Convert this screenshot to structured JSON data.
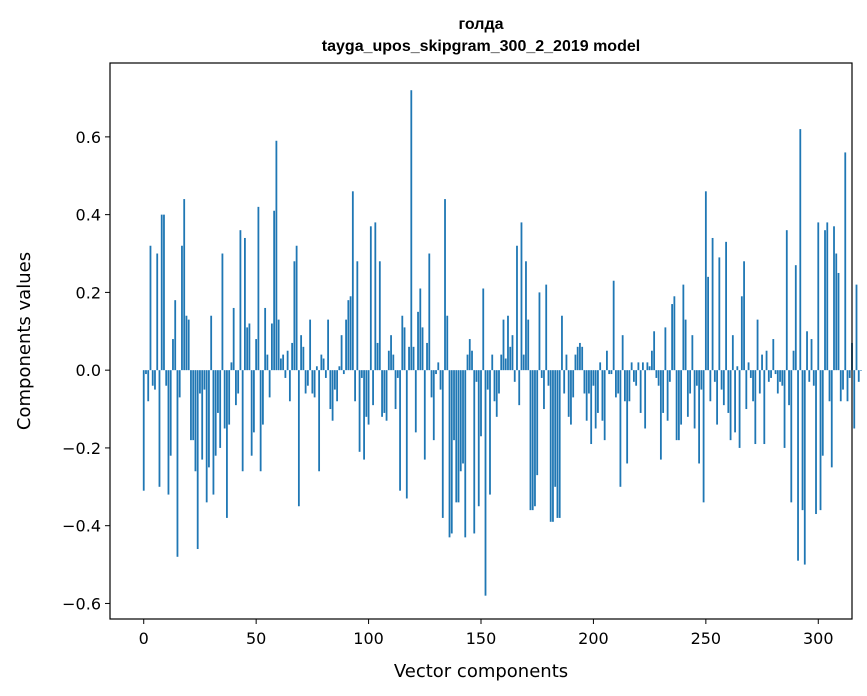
{
  "chart_data": {
    "type": "bar",
    "title": "голда",
    "subtitle": "tayga_upos_skipgram_300_2_2019 model",
    "xlabel": "Vector components",
    "ylabel": "Components values",
    "xlim": [
      -15,
      315
    ],
    "ylim": [
      -0.64,
      0.79
    ],
    "x_ticks": [
      0,
      50,
      100,
      150,
      200,
      250,
      300
    ],
    "y_ticks": [
      -0.6,
      -0.4,
      -0.2,
      0.0,
      0.2,
      0.4,
      0.6
    ],
    "x_tick_labels": [
      "0",
      "50",
      "100",
      "150",
      "200",
      "250",
      "300"
    ],
    "y_tick_labels": [
      "−0.6",
      "−0.4",
      "−0.2",
      "0.0",
      "0.2",
      "0.4",
      "0.6"
    ],
    "bar_color": "#1f77b4",
    "values": [
      -0.31,
      -0.01,
      -0.08,
      0.32,
      -0.04,
      -0.05,
      0.3,
      -0.3,
      0.4,
      0.4,
      -0.04,
      -0.32,
      -0.22,
      0.08,
      0.18,
      -0.48,
      -0.07,
      0.32,
      0.44,
      0.14,
      0.13,
      -0.18,
      -0.18,
      -0.26,
      -0.46,
      -0.06,
      -0.23,
      -0.05,
      -0.34,
      -0.25,
      0.14,
      -0.32,
      -0.22,
      -0.11,
      -0.2,
      0.3,
      -0.15,
      -0.38,
      -0.14,
      0.02,
      0.16,
      -0.09,
      -0.06,
      0.36,
      -0.26,
      0.34,
      0.11,
      0.12,
      -0.22,
      -0.16,
      0.08,
      0.42,
      -0.26,
      -0.14,
      0.16,
      0.04,
      -0.07,
      0.12,
      0.41,
      0.59,
      0.13,
      0.03,
      0.04,
      -0.02,
      0.05,
      -0.08,
      0.07,
      0.28,
      0.32,
      -0.35,
      0.09,
      0.06,
      -0.06,
      -0.04,
      0.13,
      -0.06,
      -0.07,
      0.01,
      -0.26,
      0.04,
      0.03,
      -0.02,
      0.13,
      -0.1,
      -0.13,
      -0.05,
      -0.08,
      0.01,
      0.09,
      -0.01,
      0.13,
      0.18,
      0.19,
      0.46,
      -0.08,
      0.28,
      -0.21,
      -0.02,
      -0.23,
      -0.12,
      -0.14,
      0.37,
      -0.09,
      0.38,
      0.07,
      0.28,
      -0.12,
      -0.11,
      -0.13,
      0.05,
      0.09,
      0.04,
      -0.1,
      -0.02,
      -0.31,
      0.14,
      0.11,
      -0.33,
      0.06,
      0.72,
      0.06,
      -0.16,
      0.15,
      0.21,
      0.11,
      -0.23,
      0.07,
      0.3,
      -0.07,
      -0.18,
      -0.01,
      0.02,
      -0.05,
      -0.38,
      0.44,
      0.14,
      -0.43,
      -0.42,
      -0.18,
      -0.34,
      -0.34,
      -0.26,
      -0.24,
      -0.43,
      0.04,
      0.08,
      0.05,
      -0.42,
      -0.03,
      -0.35,
      -0.17,
      0.21,
      -0.58,
      -0.05,
      -0.32,
      0.04,
      -0.08,
      -0.12,
      -0.06,
      0.04,
      0.13,
      0.03,
      0.14,
      0.06,
      0.09,
      -0.03,
      0.32,
      -0.09,
      0.38,
      0.04,
      0.28,
      0.13,
      -0.36,
      -0.36,
      -0.35,
      -0.27,
      0.2,
      -0.02,
      -0.1,
      0.22,
      -0.04,
      -0.39,
      -0.39,
      -0.3,
      -0.38,
      -0.38,
      0.14,
      -0.06,
      0.04,
      -0.12,
      -0.14,
      -0.07,
      0.04,
      0.06,
      0.07,
      0.06,
      -0.06,
      -0.13,
      -0.06,
      -0.19,
      -0.04,
      -0.15,
      -0.11,
      0.02,
      -0.13,
      -0.18,
      0.05,
      -0.01,
      -0.01,
      0.23,
      -0.07,
      -0.06,
      -0.3,
      0.09,
      -0.08,
      -0.24,
      -0.08,
      0.02,
      -0.03,
      -0.04,
      0.02,
      -0.11,
      0.02,
      -0.15,
      0.02,
      0.01,
      0.05,
      0.1,
      -0.02,
      -0.04,
      -0.23,
      -0.11,
      0.11,
      -0.13,
      -0.03,
      0.17,
      0.19,
      -0.18,
      -0.18,
      -0.14,
      0.22,
      0.13,
      -0.12,
      -0.06,
      0.09,
      -0.15,
      -0.04,
      -0.24,
      -0.05,
      -0.34,
      0.46,
      0.24,
      -0.08,
      0.34,
      -0.03,
      -0.14,
      0.29,
      -0.05,
      -0.09,
      0.33,
      -0.11,
      -0.18,
      0.09,
      -0.16,
      0.01,
      -0.2,
      0.19,
      0.28,
      -0.1,
      0.02,
      -0.02,
      -0.08,
      -0.19,
      0.13,
      -0.06,
      0.04,
      -0.19,
      0.05,
      -0.03,
      -0.02,
      0.08,
      -0.01,
      -0.06,
      -0.03,
      -0.04,
      -0.2,
      0.36,
      -0.09,
      -0.34,
      0.05,
      0.27,
      -0.49,
      0.62,
      -0.36,
      -0.5,
      0.1,
      -0.03,
      0.08,
      -0.04,
      -0.37,
      0.38,
      -0.36,
      -0.22,
      0.36,
      0.38,
      -0.08,
      -0.25,
      0.37,
      0.3,
      0.25,
      -0.08,
      -0.05,
      0.56,
      -0.08,
      -0.02,
      0.07,
      -0.15,
      0.22,
      -0.03,
      0.0
    ]
  }
}
